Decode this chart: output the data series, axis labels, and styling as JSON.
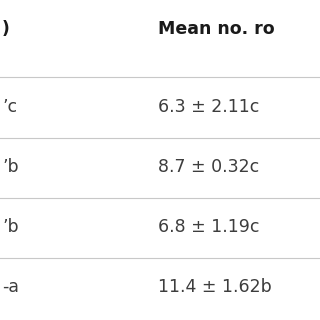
{
  "col1_header": ")",
  "col2_header": "Mean no. ro",
  "col1_cells": [
    "ʼc",
    "ʼb",
    "ʼb",
    "-a"
  ],
  "col2_cells": [
    "6.3 ± 2.11c",
    "8.7 ± 0.32c",
    "6.8 ± 1.19c",
    "11.4 ± 1.62b"
  ],
  "background_color": "#ffffff",
  "text_color": "#3d3d3d",
  "header_color": "#1a1a1a",
  "line_color": "#c8c8c8",
  "header_fontsize": 12.5,
  "cell_fontsize": 12.5,
  "fig_width": 3.2,
  "fig_height": 3.2,
  "dpi": 100
}
